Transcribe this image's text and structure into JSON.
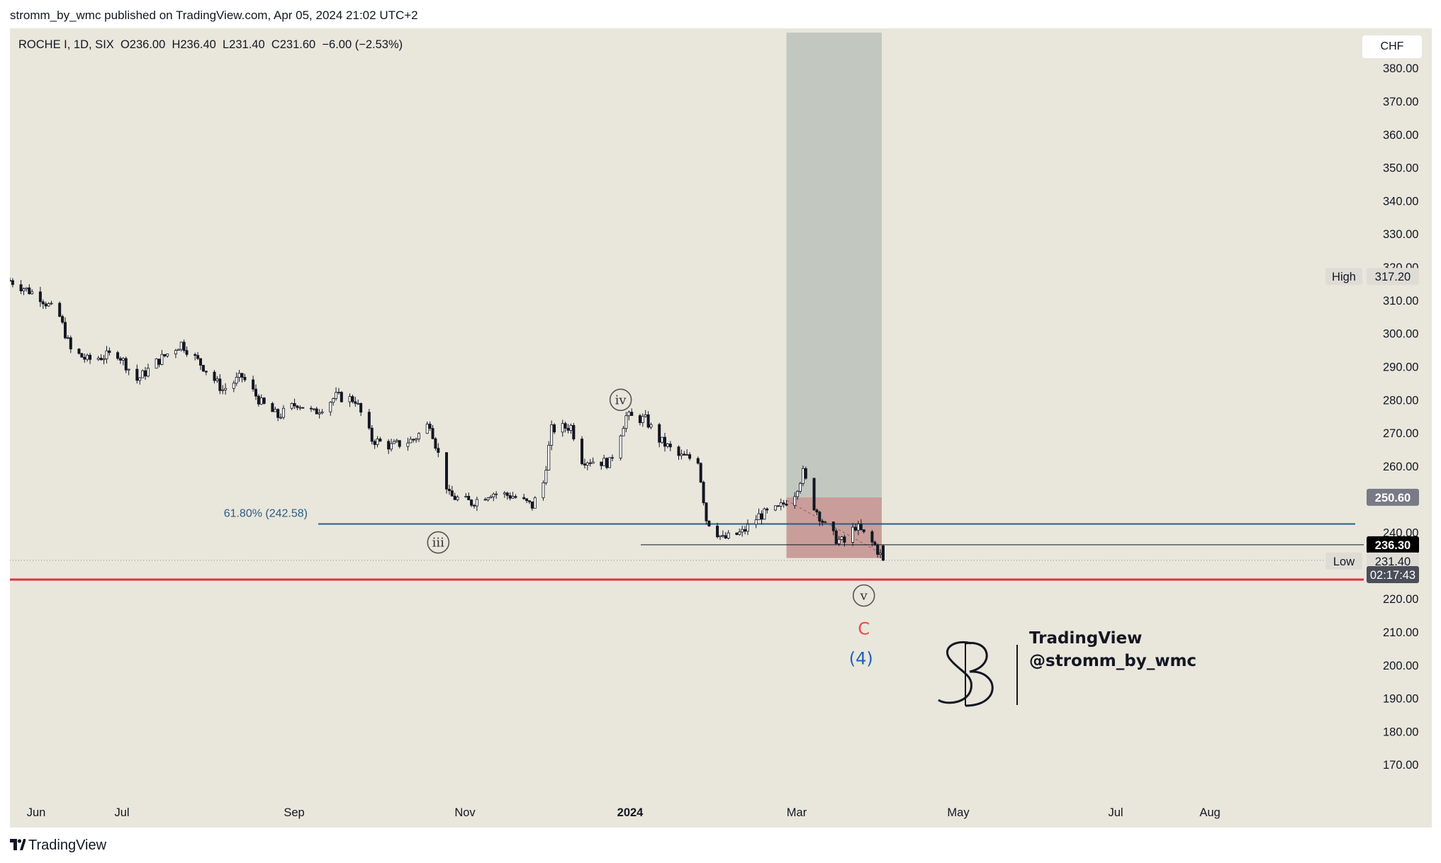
{
  "header": {
    "published_line": "stromm_by_wmc published on TradingView.com, Apr 05, 2024 21:02 UTC+2"
  },
  "legend": {
    "symbol": "ROCHE I, 1D, SIX",
    "open": "O236.00",
    "high": "H236.40",
    "low": "L231.40",
    "close": "C231.60",
    "change": "−6.00 (−2.53%)"
  },
  "currency": "CHF",
  "footer": {
    "brand": "TradingView"
  },
  "watermark": {
    "line1": "TradingView",
    "line2": "@stromm_by_wmc"
  },
  "colors": {
    "background": "#e9e6dc",
    "candle": "#131722",
    "fib_line": "#2a5d84",
    "support_line": "#e03140",
    "target_zone": "#9ba9a4",
    "stop_zone": "#b46e6e",
    "wave_c": "#e94b4b",
    "wave_4": "#1f5fc0"
  },
  "chart_data": {
    "type": "candlestick",
    "symbol": "ROCHE I",
    "interval": "1D",
    "exchange": "SIX",
    "currency": "CHF",
    "ylim": [
      163,
      392
    ],
    "y_ticks": [
      380,
      370,
      360,
      350,
      340,
      330,
      320,
      310,
      300,
      290,
      280,
      270,
      260,
      250,
      240,
      230,
      220,
      210,
      200,
      190,
      180,
      170
    ],
    "x_ticks": [
      "Jun",
      "Jul",
      "Sep",
      "Nov",
      "2024",
      "Mar",
      "May",
      "Jul",
      "Aug"
    ],
    "price_path": [
      [
        "2023-05-25",
        316
      ],
      [
        "2023-06-05",
        311
      ],
      [
        "2023-06-12",
        305
      ],
      [
        "2023-06-16",
        295
      ],
      [
        "2023-06-22",
        292
      ],
      [
        "2023-07-03",
        294
      ],
      [
        "2023-07-10",
        286
      ],
      [
        "2023-07-18",
        292
      ],
      [
        "2023-07-26",
        297
      ],
      [
        "2023-08-03",
        290
      ],
      [
        "2023-08-10",
        283
      ],
      [
        "2023-08-17",
        287
      ],
      [
        "2023-08-24",
        279
      ],
      [
        "2023-08-30",
        275
      ],
      [
        "2023-09-06",
        279
      ],
      [
        "2023-09-12",
        276
      ],
      [
        "2023-09-20",
        281
      ],
      [
        "2023-09-27",
        280
      ],
      [
        "2023-10-03",
        268
      ],
      [
        "2023-10-10",
        266
      ],
      [
        "2023-10-18",
        268
      ],
      [
        "2023-10-24",
        273
      ],
      [
        "2023-10-31",
        251
      ],
      [
        "2023-11-08",
        249
      ],
      [
        "2023-11-15",
        252
      ],
      [
        "2023-11-23",
        251
      ],
      [
        "2023-11-30",
        248
      ],
      [
        "2023-12-04",
        255
      ],
      [
        "2023-12-07",
        271
      ],
      [
        "2023-12-14",
        272
      ],
      [
        "2023-12-18",
        262
      ],
      [
        "2023-12-28",
        261
      ],
      [
        "2024-01-03",
        275
      ],
      [
        "2024-01-10",
        274
      ],
      [
        "2024-01-15",
        268
      ],
      [
        "2024-01-22",
        263
      ],
      [
        "2024-01-29",
        262
      ],
      [
        "2024-02-01",
        244
      ],
      [
        "2024-02-07",
        238
      ],
      [
        "2024-02-14",
        240
      ],
      [
        "2024-02-20",
        245
      ],
      [
        "2024-02-27",
        247
      ],
      [
        "2024-03-04",
        252
      ],
      [
        "2024-03-07",
        258
      ],
      [
        "2024-03-11",
        248
      ],
      [
        "2024-03-15",
        242
      ],
      [
        "2024-03-19",
        238
      ],
      [
        "2024-03-22",
        237
      ],
      [
        "2024-03-26",
        242
      ],
      [
        "2024-04-02",
        236
      ],
      [
        "2024-04-05",
        231.6
      ]
    ],
    "ohlc_last": {
      "open": 236.0,
      "high": 236.4,
      "low": 231.4,
      "close": 231.6,
      "change": -6.0,
      "change_pct": -2.53
    },
    "price_labels": [
      {
        "label": "High",
        "value": "317.20"
      },
      {
        "label": "",
        "value": "250.60"
      },
      {
        "label": "",
        "value": "236.30"
      },
      {
        "label": "Low",
        "value": "231.40"
      },
      {
        "label": "",
        "value": "02:17:43"
      }
    ],
    "fib_level": {
      "label": "61.80% (242.58)",
      "value": 242.58
    },
    "horizontal_lines": [
      {
        "name": "support",
        "value": 225.8
      },
      {
        "name": "level-236",
        "value": 236.3
      },
      {
        "name": "close-dotted",
        "value": 231.6
      }
    ],
    "position_tool": {
      "start": "2024-03-01",
      "end": "2024-04-05",
      "entry": 250.6,
      "target": 389,
      "stop": 232.3
    },
    "wave_labels": [
      {
        "text": "iv",
        "date": "2024-01-01",
        "price": 280
      },
      {
        "text": "iii",
        "date": "2023-10-27",
        "price": 237
      },
      {
        "text": "v",
        "date": "2024-03-29",
        "price": 221
      },
      {
        "text": "C",
        "date": "2024-03-29",
        "price": 211
      },
      {
        "text": "(4)",
        "date": "2024-03-28",
        "price": 202
      }
    ]
  }
}
